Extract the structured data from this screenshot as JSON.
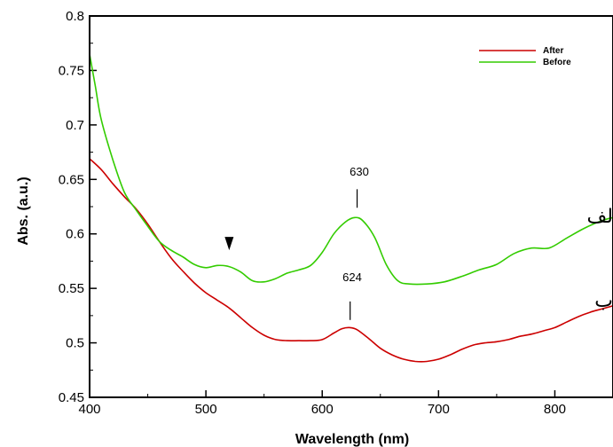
{
  "chart_data": {
    "type": "line",
    "xlabel": "Wavelength (nm)",
    "ylabel": "Abs. (a.u.)",
    "xlim": [
      400,
      850
    ],
    "ylim": [
      0.45,
      0.8
    ],
    "x_ticks": [
      400,
      500,
      600,
      700,
      800
    ],
    "x_tick_labels": [
      "400",
      "500",
      "600",
      "700",
      "800"
    ],
    "y_ticks": [
      0.45,
      0.5,
      0.55,
      0.6,
      0.65,
      0.7,
      0.75,
      0.8
    ],
    "y_tick_labels": [
      "0.45",
      "0.5",
      "0.55",
      "0.6",
      "0.65",
      "0.7",
      "0.75",
      "0.8"
    ],
    "grid": false,
    "legend_position": "top-right",
    "series": [
      {
        "name": "After",
        "color": "#cc0000",
        "points": [
          [
            400,
            0.669
          ],
          [
            410,
            0.659
          ],
          [
            420,
            0.646
          ],
          [
            430,
            0.634
          ],
          [
            440,
            0.623
          ],
          [
            450,
            0.609
          ],
          [
            460,
            0.593
          ],
          [
            470,
            0.578
          ],
          [
            480,
            0.566
          ],
          [
            490,
            0.555
          ],
          [
            500,
            0.546
          ],
          [
            510,
            0.539
          ],
          [
            520,
            0.532
          ],
          [
            530,
            0.523
          ],
          [
            540,
            0.514
          ],
          [
            550,
            0.507
          ],
          [
            560,
            0.503
          ],
          [
            570,
            0.502
          ],
          [
            580,
            0.502
          ],
          [
            590,
            0.502
          ],
          [
            600,
            0.503
          ],
          [
            610,
            0.509
          ],
          [
            617,
            0.513
          ],
          [
            624,
            0.514
          ],
          [
            630,
            0.512
          ],
          [
            640,
            0.504
          ],
          [
            650,
            0.495
          ],
          [
            660,
            0.489
          ],
          [
            670,
            0.485
          ],
          [
            680,
            0.483
          ],
          [
            690,
            0.483
          ],
          [
            700,
            0.485
          ],
          [
            710,
            0.489
          ],
          [
            720,
            0.494
          ],
          [
            730,
            0.498
          ],
          [
            740,
            0.5
          ],
          [
            750,
            0.501
          ],
          [
            760,
            0.503
          ],
          [
            770,
            0.506
          ],
          [
            780,
            0.508
          ],
          [
            790,
            0.511
          ],
          [
            800,
            0.514
          ],
          [
            810,
            0.519
          ],
          [
            820,
            0.524
          ],
          [
            830,
            0.528
          ],
          [
            840,
            0.531
          ],
          [
            850,
            0.534
          ]
        ]
      },
      {
        "name": "Before",
        "color": "#33cc00",
        "points": [
          [
            400,
            0.765
          ],
          [
            405,
            0.735
          ],
          [
            410,
            0.705
          ],
          [
            420,
            0.668
          ],
          [
            430,
            0.638
          ],
          [
            440,
            0.622
          ],
          [
            450,
            0.607
          ],
          [
            460,
            0.593
          ],
          [
            470,
            0.585
          ],
          [
            480,
            0.579
          ],
          [
            490,
            0.572
          ],
          [
            500,
            0.569
          ],
          [
            510,
            0.571
          ],
          [
            520,
            0.57
          ],
          [
            530,
            0.565
          ],
          [
            540,
            0.557
          ],
          [
            550,
            0.556
          ],
          [
            560,
            0.559
          ],
          [
            570,
            0.564
          ],
          [
            580,
            0.567
          ],
          [
            590,
            0.571
          ],
          [
            600,
            0.583
          ],
          [
            610,
            0.6
          ],
          [
            620,
            0.611
          ],
          [
            628,
            0.615
          ],
          [
            635,
            0.612
          ],
          [
            645,
            0.597
          ],
          [
            655,
            0.572
          ],
          [
            665,
            0.557
          ],
          [
            675,
            0.554
          ],
          [
            690,
            0.554
          ],
          [
            705,
            0.556
          ],
          [
            720,
            0.561
          ],
          [
            735,
            0.567
          ],
          [
            750,
            0.572
          ],
          [
            765,
            0.582
          ],
          [
            780,
            0.587
          ],
          [
            795,
            0.587
          ],
          [
            810,
            0.596
          ],
          [
            825,
            0.605
          ],
          [
            840,
            0.612
          ],
          [
            850,
            0.615
          ]
        ]
      }
    ],
    "annotations": [
      {
        "text": "630",
        "x": 630,
        "marker_top": 0.641,
        "marker_bottom": 0.624
      },
      {
        "text": "624",
        "x": 624,
        "marker_top": 0.538,
        "marker_bottom": 0.521
      }
    ],
    "arrow_markers": [
      {
        "x": 520,
        "y": 0.585
      }
    ],
    "side_labels": [
      {
        "text": "ﻟﻒ",
        "near_series": "Before"
      },
      {
        "text": "ب",
        "near_series": "After"
      }
    ]
  }
}
